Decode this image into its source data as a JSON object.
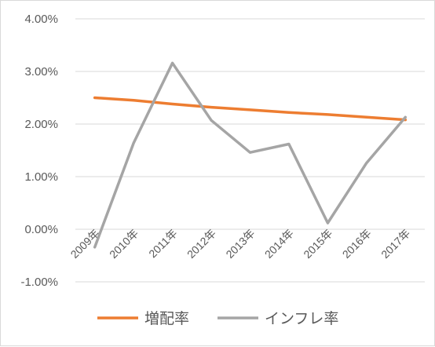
{
  "chart_data": {
    "type": "line",
    "x": [
      "2009年",
      "2010年",
      "2011年",
      "2012年",
      "2013年",
      "2014年",
      "2015年",
      "2016年",
      "2017年"
    ],
    "series": [
      {
        "name": "増配率",
        "color": "#ED7D31",
        "values": [
          2.5,
          2.45,
          2.38,
          2.32,
          2.27,
          2.22,
          2.18,
          2.13,
          2.08
        ]
      },
      {
        "name": "インフレ率",
        "color": "#A5A5A5",
        "values": [
          -0.34,
          1.64,
          3.16,
          2.07,
          1.46,
          1.62,
          0.12,
          1.26,
          2.13
        ]
      }
    ],
    "ylim": [
      -1,
      4
    ],
    "yticks": [
      4,
      3,
      2,
      1,
      0,
      -1
    ],
    "ytick_labels": [
      "4.00%",
      "3.00%",
      "2.00%",
      "1.00%",
      "0.00%",
      "-1.00%"
    ],
    "title": "",
    "xlabel": "",
    "ylabel": "",
    "grid": true,
    "legend": "bottom"
  }
}
